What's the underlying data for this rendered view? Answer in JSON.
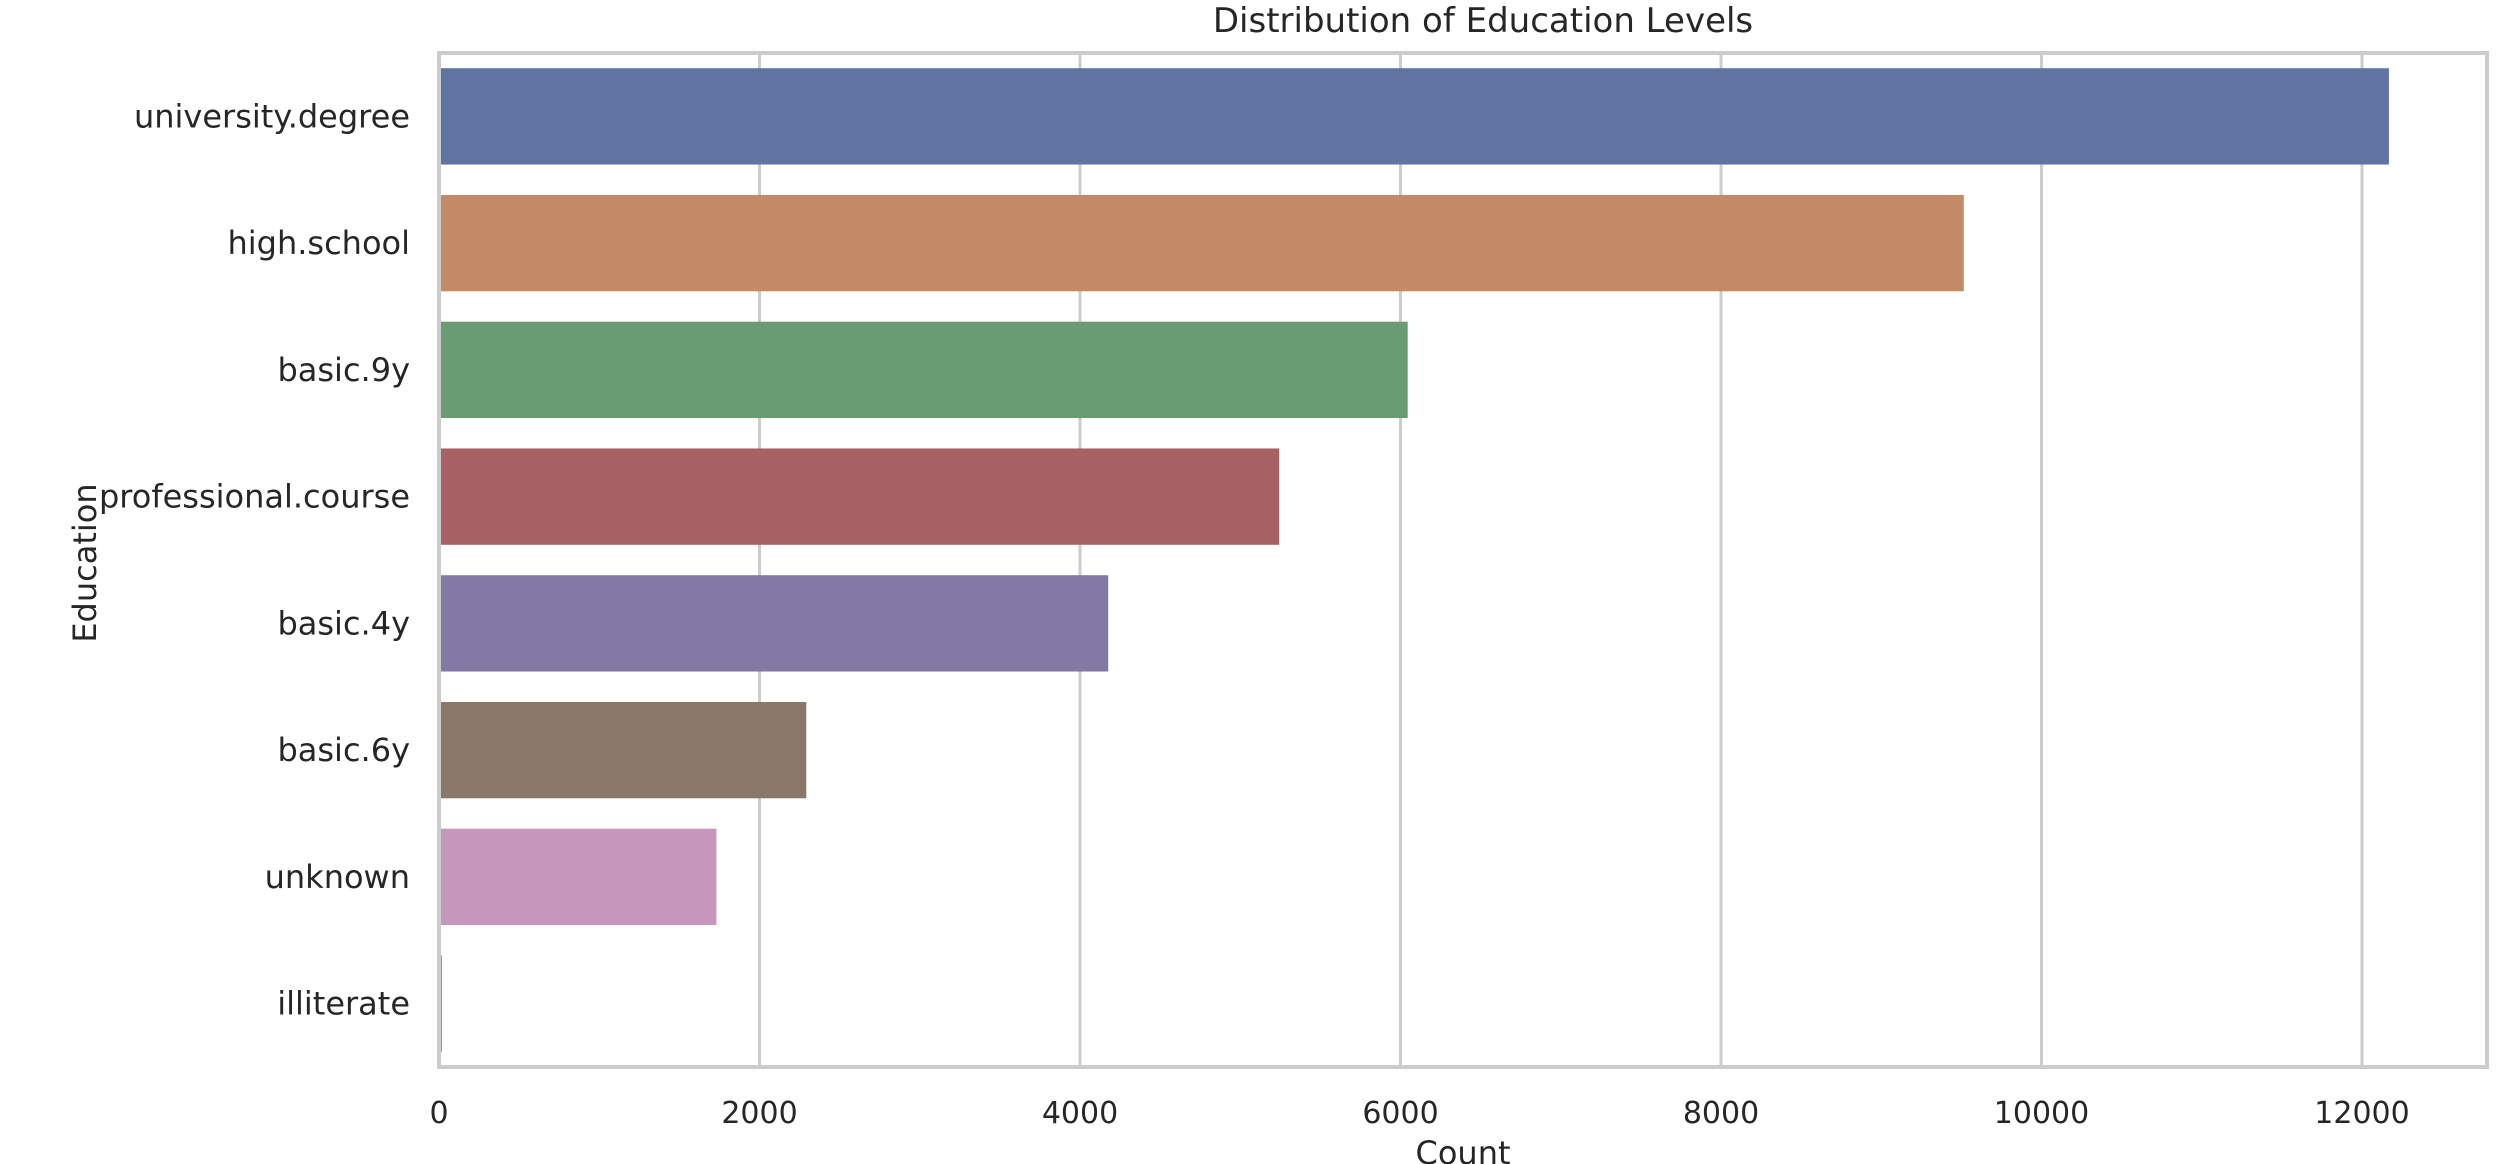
{
  "chart_data": {
    "type": "bar",
    "orientation": "horizontal",
    "title": "Distribution of Education Levels",
    "xlabel": "Count",
    "ylabel": "Education",
    "categories": [
      "university.degree",
      "high.school",
      "basic.9y",
      "professional.course",
      "basic.4y",
      "basic.6y",
      "unknown",
      "illiterate"
    ],
    "values": [
      12168,
      9515,
      6045,
      5243,
      4176,
      2292,
      1731,
      18
    ],
    "xlim": [
      0,
      12780
    ],
    "xticks": [
      0,
      2000,
      4000,
      6000,
      8000,
      10000,
      12000
    ],
    "xtick_labels": [
      "0",
      "2000",
      "4000",
      "6000",
      "8000",
      "10000",
      "12000"
    ],
    "grid": "vertical",
    "legend": "none",
    "colors": [
      "#5f74a2",
      "#c28a67",
      "#6a9c73",
      "#a86263",
      "#8279a6",
      "#8a796a",
      "#c796bd",
      "#8c8c8c"
    ]
  }
}
